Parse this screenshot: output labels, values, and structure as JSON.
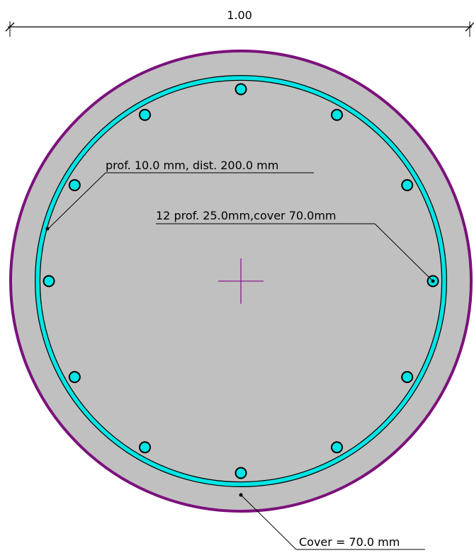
{
  "dimension": {
    "value_label": "1.00"
  },
  "annotations": {
    "stirrup_label": "prof. 10.0 mm, dist. 200.0 mm",
    "bars_label": "12 prof. 25.0mm,cover 70.0mm",
    "cover_label": "Cover = 70.0 mm"
  },
  "section": {
    "bar_count": 12
  },
  "colors": {
    "concrete_fill": "#c0c0c0",
    "section_outline": "#7b117b",
    "reinforcement": "#00e5e5",
    "centroid_marker": "#8b1a8b",
    "line": "#000000"
  }
}
